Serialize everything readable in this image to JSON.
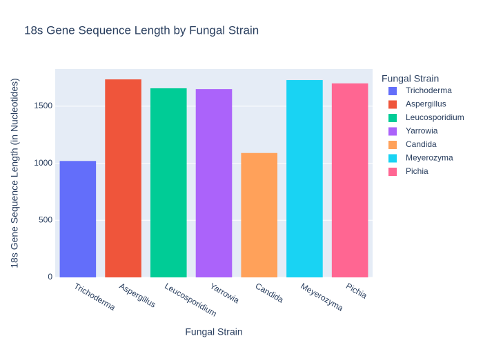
{
  "chart_data": {
    "type": "bar",
    "title": "18s Gene Sequence Length by Fungal Strain",
    "x_label": "Fungal Strain",
    "y_label": "18s Gene Sequence Length (in Nucleotides)",
    "legend_title": "Fungal Strain",
    "categories": [
      "Trichoderma",
      "Aspergillus",
      "Leucosporidium",
      "Yarrowia",
      "Candida",
      "Meyerozyma",
      "Pichia"
    ],
    "values": [
      1020,
      1735,
      1657,
      1650,
      1090,
      1729,
      1700
    ],
    "colors": [
      "#636efa",
      "#EF553B",
      "#00cc96",
      "#ab63fa",
      "#FFA15A",
      "#19d3f3",
      "#FF6692"
    ],
    "ylim": [
      0,
      1826
    ],
    "yticks": [
      0,
      500,
      1000,
      1500
    ],
    "grid": true,
    "legend": "right"
  }
}
